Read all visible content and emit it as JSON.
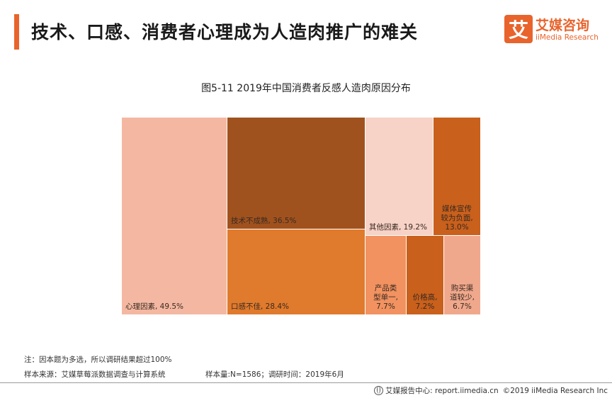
{
  "header": {
    "title": "技术、口感、消费者心理成为人造肉推广的难关",
    "logo_mark": "艾",
    "logo_cn": "艾媒咨询",
    "logo_en": "iiMedia Research"
  },
  "chart_data": {
    "type": "treemap",
    "title": "图5-11 2019年中国消费者反感人造肉原因分布",
    "unit": "%",
    "items": [
      {
        "label": "心理因素",
        "value": 49.5,
        "display": "心理因素, 49.5%",
        "color": "#f4b8a2"
      },
      {
        "label": "技术不成熟",
        "value": 36.5,
        "display": "技术不成熟, 36.5%",
        "color": "#a0521e"
      },
      {
        "label": "口感不佳",
        "value": 28.4,
        "display": "口感不佳, 28.4%",
        "color": "#e07a2c"
      },
      {
        "label": "其他因素",
        "value": 19.2,
        "display": "其他因素, 19.2%",
        "color": "#f7d2c6"
      },
      {
        "label": "媒体宣传较为负面",
        "value": 13.0,
        "display_lines": [
          "媒体宣传",
          "较为负面,",
          "13.0%"
        ],
        "color": "#c9601c"
      },
      {
        "label": "产品类型单一",
        "value": 7.7,
        "display_lines": [
          "产品类",
          "型单一,",
          "7.7%"
        ],
        "color": "#f19260"
      },
      {
        "label": "价格高",
        "value": 7.2,
        "display_lines": [
          "价格高,",
          "7.2%"
        ],
        "color": "#c9601c"
      },
      {
        "label": "购买渠道较少",
        "value": 6.7,
        "display_lines": [
          "购买渠",
          "道较少,",
          "6.7%"
        ],
        "color": "#f0a88c"
      }
    ]
  },
  "notes": {
    "note_1": "注：因本题为多选，所以调研结果超过100%",
    "source": "样本来源：艾媒草莓派数据调查与计算系统",
    "sample": "样本量:N=1586；调研时间：2019年6月"
  },
  "footer": {
    "report_center": "艾媒报告中心: report.iimedia.cn",
    "copyright": "©2019  iiMedia Research  Inc"
  }
}
